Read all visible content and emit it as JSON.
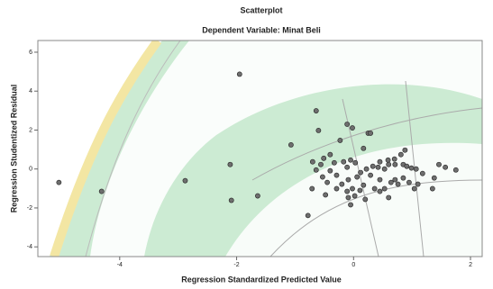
{
  "chart_data": {
    "type": "scatter",
    "title": "Scatterplot",
    "subtitle": "Dependent Variable: Minat Beli",
    "x_label": "Regression Standardized Predicted Value",
    "y_label": "Regression Studentized Residual",
    "xlim": [
      -5.4,
      2.2
    ],
    "ylim": [
      -4.5,
      6.6
    ],
    "xticks": [
      -4,
      -2,
      0,
      2
    ],
    "yticks": [
      -4,
      -2,
      0,
      2,
      4,
      6
    ],
    "color": "#6e6e6e",
    "x": [
      -5.04,
      -4.31,
      -2.88,
      -2.11,
      -1.95,
      -2.09,
      -1.64,
      -1.07,
      -0.78,
      -0.64,
      -0.6,
      -0.11,
      -0.02,
      0.25,
      0.29,
      -0.23,
      0.17,
      0.88,
      0.81,
      0.7,
      0.45,
      0.59,
      -0.51,
      -0.4,
      -0.33,
      -0.17,
      -0.56,
      -0.64,
      -0.7,
      -0.4,
      -0.29,
      -0.11,
      -0.05,
      0.03,
      0.12,
      0.22,
      0.33,
      0.42,
      0.53,
      0.6,
      0.71,
      0.85,
      0.91,
      0.99,
      1.07,
      1.18,
      1.46,
      1.57,
      1.75,
      -0.2,
      -0.09,
      -0.02,
      0.06,
      0.17,
      0.29,
      0.36,
      0.45,
      0.53,
      0.64,
      0.71,
      0.76,
      0.85,
      0.95,
      1.04,
      1.1,
      1.38,
      1.35,
      -0.71,
      -0.53,
      -0.45,
      -0.29,
      -0.09,
      0.02,
      0.11,
      0.2,
      0.45,
      0.6,
      -0.05,
      -0.11,
      -0.48
    ],
    "values": [
      -0.69,
      -1.15,
      -0.6,
      0.23,
      4.87,
      -1.61,
      -1.38,
      1.24,
      -2.39,
      2.99,
      1.98,
      2.3,
      2.11,
      1.84,
      1.84,
      1.47,
      1.06,
      0.97,
      0.74,
      0.51,
      0.37,
      0.46,
      0.55,
      0.74,
      0.32,
      0.37,
      0.23,
      -0.05,
      0.37,
      -0.09,
      -0.32,
      0.09,
      0.46,
      0.32,
      -0.18,
      0.0,
      0.14,
      0.09,
      0.0,
      0.23,
      0.23,
      0.23,
      0.14,
      0.05,
      0.0,
      -0.23,
      0.23,
      0.09,
      -0.05,
      -0.78,
      -0.55,
      -1.01,
      -0.41,
      -0.83,
      -0.32,
      -1.01,
      -0.55,
      -1.01,
      -0.69,
      -0.55,
      -0.78,
      -0.46,
      -0.69,
      -1.01,
      -0.78,
      -0.46,
      -1.01,
      -1.01,
      -0.41,
      -0.69,
      -1.01,
      -1.47,
      -1.38,
      -1.1,
      -1.56,
      -1.15,
      -1.47,
      -1.84,
      -1.15,
      -1.33
    ]
  }
}
